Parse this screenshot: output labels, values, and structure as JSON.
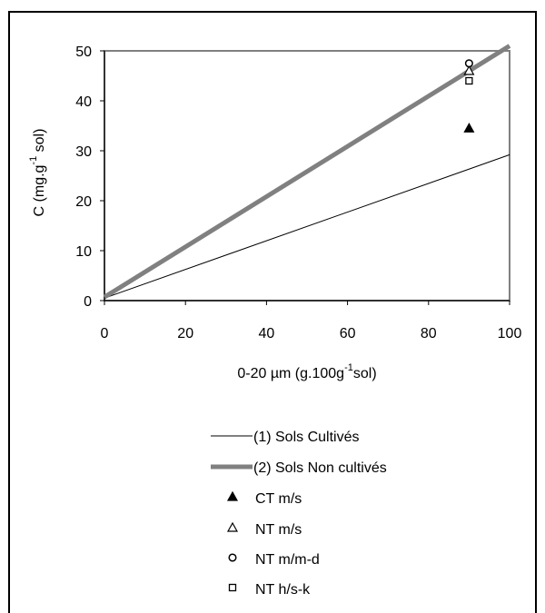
{
  "chart_data": {
    "type": "scatter",
    "xlabel": "0-20 µm (g.100g",
    "xlabel_sup": "-1",
    "xlabel_tail": "sol)",
    "ylabel": "C (mg.g",
    "ylabel_sup": "-1",
    "ylabel_tail": " sol)",
    "xlim": [
      0,
      100
    ],
    "ylim": [
      0,
      50
    ],
    "xticks": [
      "0",
      "20",
      "40",
      "60",
      "80",
      "100"
    ],
    "yticks": [
      "0",
      "10",
      "20",
      "30",
      "40",
      "50"
    ],
    "grid": false,
    "lines": [
      {
        "name": "(1) Sols Cultivés",
        "color": "#000000",
        "width": 1,
        "points": [
          [
            0,
            0.5
          ],
          [
            100,
            29.2
          ]
        ]
      },
      {
        "name": "(2) Sols Non cultivés",
        "color": "#808080",
        "width": 5,
        "points": [
          [
            0,
            0.7
          ],
          [
            100,
            51
          ]
        ]
      }
    ],
    "points": [
      {
        "name": "CT m/s",
        "marker": "triangle-filled",
        "x": 90,
        "y": 34.5
      },
      {
        "name": "NT m/s",
        "marker": "triangle-open",
        "x": 90,
        "y": 46
      },
      {
        "name": "NT m/m-d",
        "marker": "circle-open",
        "x": 90,
        "y": 47.5
      },
      {
        "name": "NT h/s-k",
        "marker": "square-open",
        "x": 90,
        "y": 44
      }
    ],
    "legend_placement": "bottom"
  }
}
